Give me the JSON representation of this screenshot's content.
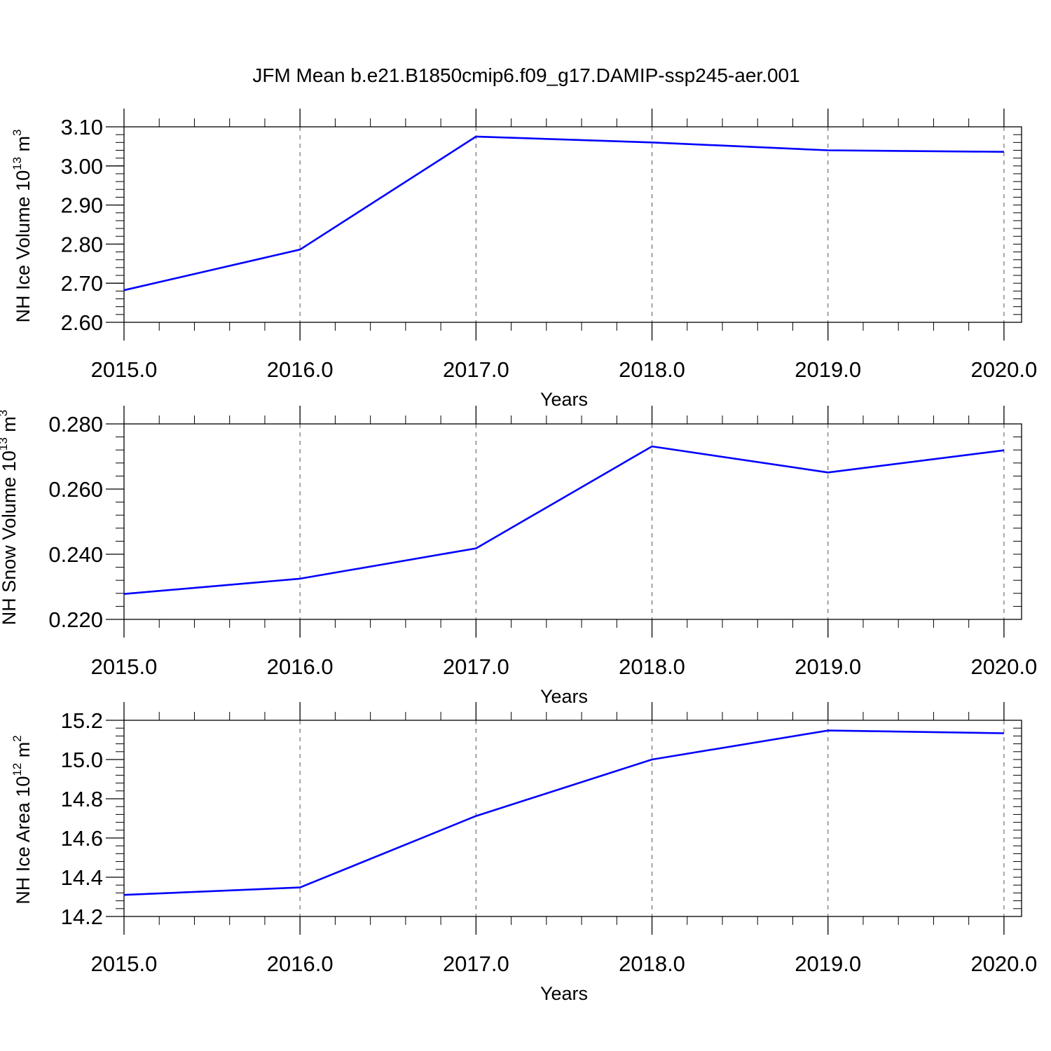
{
  "figure": {
    "title": "JFM Mean b.e21.B1850cmip6.f09_g17.DAMIP-ssp245-aer.001"
  },
  "chart_data": [
    {
      "type": "line",
      "xlabel": "Years",
      "ylabel": "NH Ice Volume 10",
      "ylabel_exp": "13",
      "ylabel_unit": " m",
      "ylabel_unit_exp": "3",
      "x": [
        2015,
        2016,
        2017,
        2018,
        2019,
        2020
      ],
      "xticks": [
        2015,
        2016,
        2017,
        2018,
        2019,
        2020
      ],
      "xticklabels": [
        "2015.0",
        "2016.0",
        "2017.0",
        "2018.0",
        "2019.0",
        "2020.0"
      ],
      "xlim": [
        2015,
        2020.1
      ],
      "ylim": [
        2.6,
        3.1
      ],
      "yticks": [
        2.6,
        2.7,
        2.8,
        2.9,
        3.0,
        3.1
      ],
      "yticklabels": [
        "2.60",
        "2.70",
        "2.80",
        "2.90",
        "3.00",
        "3.10"
      ],
      "yminor_step": 0.02,
      "series": [
        {
          "values": [
            2.682,
            2.786,
            3.075,
            3.06,
            3.04,
            3.036
          ],
          "color": "#0000ff"
        }
      ],
      "grid": "vertical dashed at major x ticks"
    },
    {
      "type": "line",
      "xlabel": "Years",
      "ylabel": "NH Snow Volume 10",
      "ylabel_exp": "13",
      "ylabel_unit": " m",
      "ylabel_unit_exp": "3",
      "x": [
        2015,
        2016,
        2017,
        2018,
        2019,
        2020
      ],
      "xticks": [
        2015,
        2016,
        2017,
        2018,
        2019,
        2020
      ],
      "xticklabels": [
        "2015.0",
        "2016.0",
        "2017.0",
        "2018.0",
        "2019.0",
        "2020.0"
      ],
      "xlim": [
        2015,
        2020.1
      ],
      "ylim": [
        0.22,
        0.28
      ],
      "yticks": [
        0.22,
        0.24,
        0.26,
        0.28
      ],
      "yticklabels": [
        "0.220",
        "0.240",
        "0.260",
        "0.280"
      ],
      "yminor_step": 0.004,
      "series": [
        {
          "values": [
            0.2278,
            0.2325,
            0.2418,
            0.2731,
            0.2651,
            0.2719
          ],
          "color": "#0000ff"
        }
      ],
      "grid": "vertical dashed at major x ticks"
    },
    {
      "type": "line",
      "xlabel": "Years",
      "ylabel": "NH Ice Area 10",
      "ylabel_exp": "12",
      "ylabel_unit": " m",
      "ylabel_unit_exp": "2",
      "x": [
        2015,
        2016,
        2017,
        2018,
        2019,
        2020
      ],
      "xticks": [
        2015,
        2016,
        2017,
        2018,
        2019,
        2020
      ],
      "xticklabels": [
        "2015.0",
        "2016.0",
        "2017.0",
        "2018.0",
        "2019.0",
        "2020.0"
      ],
      "xlim": [
        2015,
        2020.1
      ],
      "ylim": [
        14.2,
        15.2
      ],
      "yticks": [
        14.2,
        14.4,
        14.6,
        14.8,
        15.0,
        15.2
      ],
      "yticklabels": [
        "14.2",
        "14.4",
        "14.6",
        "14.8",
        "15.0",
        "15.2"
      ],
      "yminor_step": 0.04,
      "series": [
        {
          "values": [
            14.31,
            14.348,
            14.712,
            15.0,
            15.148,
            15.134
          ],
          "color": "#0000ff"
        }
      ],
      "grid": "vertical dashed at major x ticks"
    }
  ]
}
